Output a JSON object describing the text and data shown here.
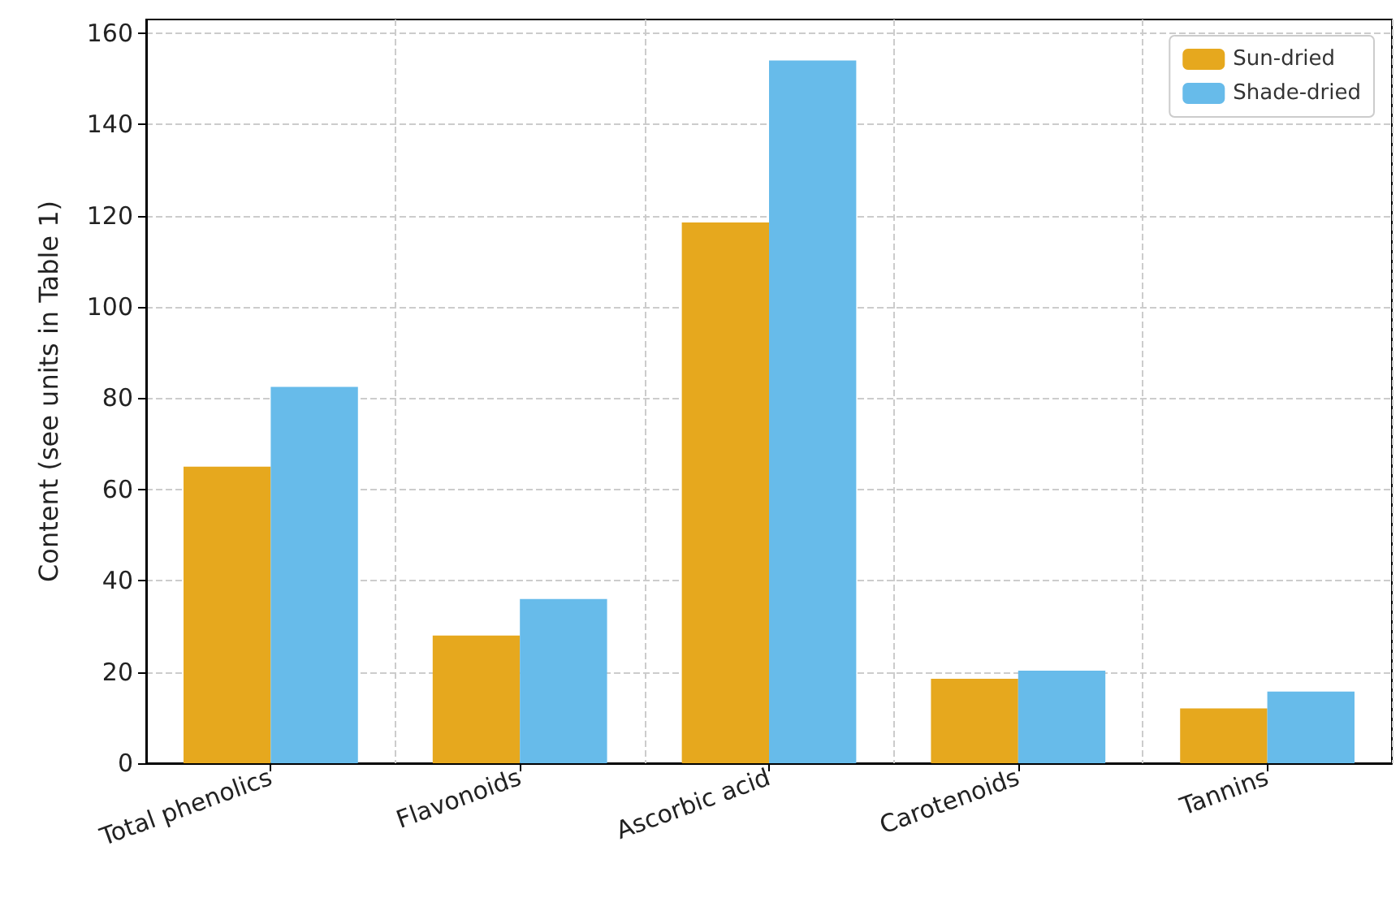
{
  "chart_data": {
    "type": "bar",
    "ylabel": "Content (see units in Table 1)",
    "categories": [
      "Total phenolics",
      "Flavonoids",
      "Ascorbic acid",
      "Carotenoids",
      "Tannins"
    ],
    "series": [
      {
        "name": "Sun-dried",
        "color": "#e6a81e",
        "values": [
          65,
          28,
          118.5,
          18.5,
          12
        ]
      },
      {
        "name": "Shade-dried",
        "color": "#67bbea",
        "values": [
          82.5,
          36,
          154,
          20.3,
          15.7
        ]
      }
    ],
    "ylim": [
      0,
      163
    ],
    "yticks": [
      0,
      20,
      40,
      60,
      80,
      100,
      120,
      140,
      160
    ],
    "grid": true,
    "legend": "top right"
  }
}
